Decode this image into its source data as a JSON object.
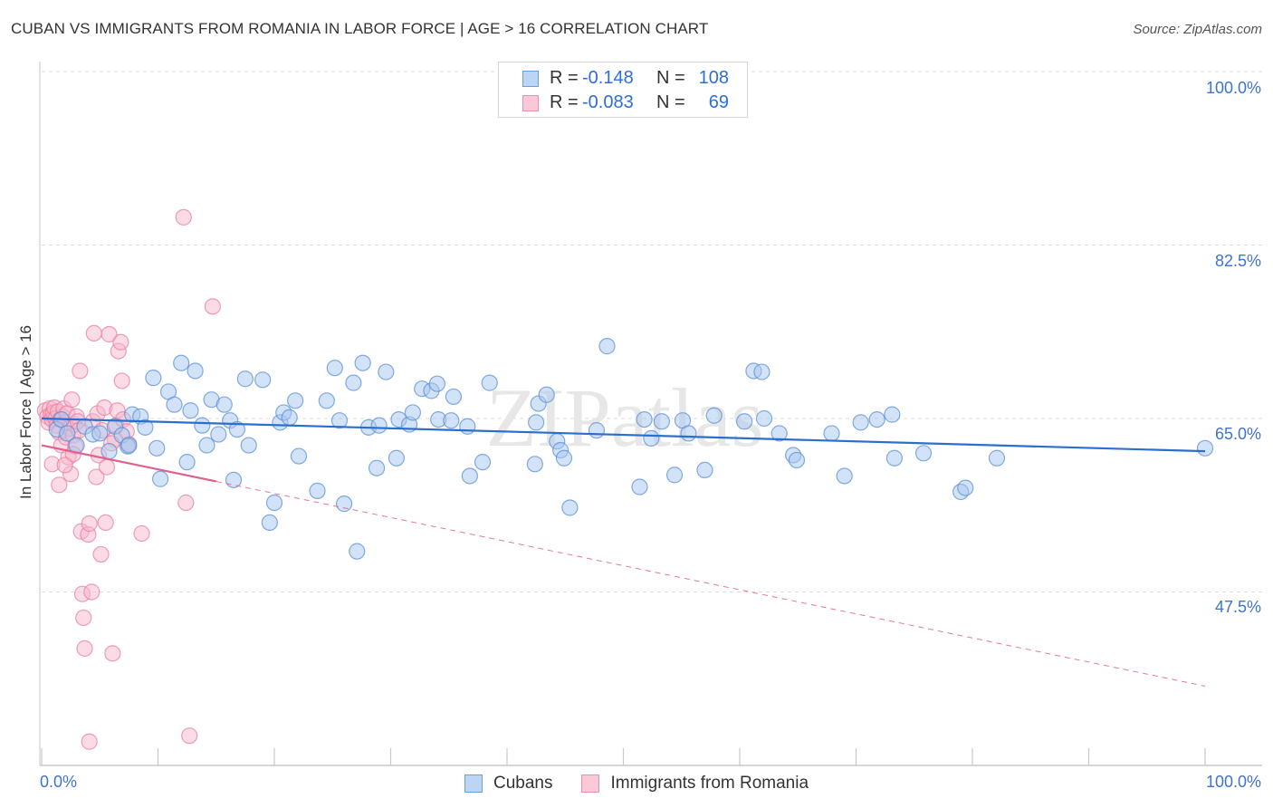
{
  "title": "CUBAN VS IMMIGRANTS FROM ROMANIA IN LABOR FORCE | AGE > 16 CORRELATION CHART",
  "source": "Source: ZipAtlas.com",
  "watermark": "ZIPatlas",
  "legend_top": [
    {
      "r_label": "R =",
      "r_value": "-0.148",
      "n_label": "N =",
      "n_value": "108"
    },
    {
      "r_label": "R =",
      "r_value": "-0.083",
      "n_label": "N =",
      "n_value": "69"
    }
  ],
  "axis": {
    "ylabel": "In Labor Force | Age > 16",
    "x_min_label": "0.0%",
    "x_max_label": "100.0%",
    "y_ticks": [
      "100.0%",
      "82.5%",
      "65.0%",
      "47.5%"
    ]
  },
  "colors": {
    "blue_fill": "#a8c8f0",
    "blue_stroke": "#5b8fd8",
    "blue_line": "#2a6fd0",
    "pink_fill": "#f7b7cb",
    "pink_stroke": "#ea7fa2",
    "pink_line": "#e0608a",
    "tick_text": "#3e74cf"
  },
  "chart_data": {
    "type": "scatter",
    "title": "CUBAN VS IMMIGRANTS FROM ROMANIA IN LABOR FORCE | AGE > 16 CORRELATION CHART",
    "xlabel": "",
    "ylabel": "In Labor Force | Age > 16",
    "xlim": [
      0,
      100
    ],
    "ylim": [
      30.5,
      102
    ],
    "y_tick_values": [
      100,
      82.5,
      65,
      47.5
    ],
    "legend_position": "top-center",
    "series": [
      {
        "name": "Cubans",
        "r": -0.148,
        "n": 108,
        "trend": {
          "x": [
            0,
            100
          ],
          "y": [
            65.0,
            61.7
          ],
          "style": "solid"
        },
        "points": [
          [
            1.3,
            63.9
          ],
          [
            1.7,
            64.9
          ],
          [
            2.2,
            63.5
          ],
          [
            3.0,
            62.3
          ],
          [
            3.7,
            64.2
          ],
          [
            4.4,
            63.4
          ],
          [
            5.0,
            63.5
          ],
          [
            5.8,
            61.7
          ],
          [
            6.3,
            64.2
          ],
          [
            6.9,
            63.3
          ],
          [
            7.4,
            62.2
          ],
          [
            7.8,
            65.4
          ],
          [
            8.5,
            65.2
          ],
          [
            8.9,
            64.1
          ],
          [
            9.6,
            69.1
          ],
          [
            9.9,
            62.0
          ],
          [
            10.2,
            58.9
          ],
          [
            10.9,
            67.7
          ],
          [
            11.4,
            66.4
          ],
          [
            12.0,
            70.6
          ],
          [
            12.5,
            60.6
          ],
          [
            12.8,
            65.8
          ],
          [
            13.2,
            69.8
          ],
          [
            13.8,
            64.3
          ],
          [
            14.2,
            62.3
          ],
          [
            14.6,
            66.9
          ],
          [
            15.2,
            63.4
          ],
          [
            15.7,
            66.4
          ],
          [
            16.2,
            64.8
          ],
          [
            16.5,
            58.8
          ],
          [
            16.8,
            63.9
          ],
          [
            17.8,
            62.3
          ],
          [
            17.5,
            69.0
          ],
          [
            19.0,
            68.9
          ],
          [
            20.0,
            56.5
          ],
          [
            19.6,
            54.5
          ],
          [
            20.5,
            64.6
          ],
          [
            20.8,
            65.6
          ],
          [
            21.3,
            65.1
          ],
          [
            21.8,
            66.8
          ],
          [
            22.1,
            61.2
          ],
          [
            23.7,
            57.7
          ],
          [
            24.5,
            66.8
          ],
          [
            25.2,
            70.1
          ],
          [
            25.6,
            64.8
          ],
          [
            26.0,
            56.4
          ],
          [
            26.8,
            68.6
          ],
          [
            27.1,
            51.6
          ],
          [
            27.6,
            70.6
          ],
          [
            28.1,
            64.1
          ],
          [
            28.8,
            60.0
          ],
          [
            29.0,
            64.3
          ],
          [
            29.6,
            69.7
          ],
          [
            30.7,
            64.9
          ],
          [
            31.6,
            64.4
          ],
          [
            31.9,
            65.6
          ],
          [
            32.7,
            68.0
          ],
          [
            33.5,
            67.8
          ],
          [
            34.0,
            68.5
          ],
          [
            34.1,
            64.9
          ],
          [
            35.2,
            64.8
          ],
          [
            35.4,
            67.2
          ],
          [
            36.6,
            64.2
          ],
          [
            36.8,
            59.2
          ],
          [
            37.9,
            60.6
          ],
          [
            38.5,
            68.6
          ],
          [
            42.5,
            64.6
          ],
          [
            42.4,
            60.4
          ],
          [
            42.7,
            66.5
          ],
          [
            43.4,
            67.4
          ],
          [
            44.3,
            62.7
          ],
          [
            44.6,
            61.8
          ],
          [
            44.9,
            61.0
          ],
          [
            45.4,
            56.0
          ],
          [
            47.7,
            63.8
          ],
          [
            48.6,
            72.3
          ],
          [
            51.4,
            58.1
          ],
          [
            51.8,
            64.9
          ],
          [
            52.4,
            63.0
          ],
          [
            53.3,
            64.7
          ],
          [
            54.4,
            59.3
          ],
          [
            55.1,
            64.8
          ],
          [
            55.6,
            63.5
          ],
          [
            57.0,
            59.8
          ],
          [
            57.8,
            65.3
          ],
          [
            60.4,
            64.7
          ],
          [
            61.2,
            69.8
          ],
          [
            61.9,
            69.7
          ],
          [
            62.1,
            65.0
          ],
          [
            63.4,
            63.5
          ],
          [
            64.6,
            61.3
          ],
          [
            64.9,
            60.8
          ],
          [
            67.9,
            63.5
          ],
          [
            69.0,
            59.2
          ],
          [
            70.4,
            64.6
          ],
          [
            71.8,
            64.9
          ],
          [
            73.1,
            65.4
          ],
          [
            73.3,
            61.0
          ],
          [
            75.8,
            61.5
          ],
          [
            79.0,
            57.6
          ],
          [
            79.4,
            58.0
          ],
          [
            82.1,
            61.0
          ],
          [
            100.0,
            62.0
          ],
          [
            7.5,
            62.3
          ],
          [
            30.5,
            61.0
          ]
        ]
      },
      {
        "name": "Immigrants from Romania",
        "r": -0.083,
        "n": 69,
        "trend": {
          "x": [
            0,
            100
          ],
          "y": [
            62.3,
            38.0
          ],
          "solid_until_x": 15,
          "style": "solid-then-dashed"
        },
        "points": [
          [
            0.3,
            65.8
          ],
          [
            0.5,
            65.2
          ],
          [
            0.6,
            64.6
          ],
          [
            0.7,
            66.0
          ],
          [
            0.8,
            65.4
          ],
          [
            0.9,
            64.9
          ],
          [
            1.0,
            65.6
          ],
          [
            1.1,
            66.1
          ],
          [
            1.2,
            65.0
          ],
          [
            1.3,
            64.3
          ],
          [
            1.4,
            65.7
          ],
          [
            1.5,
            63.6
          ],
          [
            1.6,
            64.9
          ],
          [
            1.7,
            62.3
          ],
          [
            1.8,
            65.2
          ],
          [
            1.9,
            66.0
          ],
          [
            2.0,
            64.6
          ],
          [
            2.1,
            63.1
          ],
          [
            2.2,
            65.5
          ],
          [
            2.3,
            61.1
          ],
          [
            2.4,
            64.0
          ],
          [
            2.5,
            59.4
          ],
          [
            2.6,
            66.9
          ],
          [
            2.7,
            63.3
          ],
          [
            2.8,
            64.4
          ],
          [
            2.9,
            62.2
          ],
          [
            3.0,
            65.2
          ],
          [
            3.1,
            64.7
          ],
          [
            3.2,
            63.8
          ],
          [
            3.3,
            69.8
          ],
          [
            3.4,
            53.6
          ],
          [
            3.5,
            47.3
          ],
          [
            3.6,
            44.9
          ],
          [
            3.7,
            41.8
          ],
          [
            4.0,
            53.3
          ],
          [
            4.1,
            54.4
          ],
          [
            4.3,
            47.5
          ],
          [
            4.4,
            64.7
          ],
          [
            4.5,
            73.6
          ],
          [
            4.7,
            59.1
          ],
          [
            4.8,
            65.5
          ],
          [
            4.9,
            61.3
          ],
          [
            5.1,
            51.3
          ],
          [
            5.2,
            63.8
          ],
          [
            5.4,
            66.1
          ],
          [
            5.5,
            54.5
          ],
          [
            5.6,
            60.1
          ],
          [
            5.8,
            73.5
          ],
          [
            6.1,
            41.3
          ],
          [
            6.3,
            62.9
          ],
          [
            6.4,
            64.3
          ],
          [
            6.5,
            65.8
          ],
          [
            6.6,
            71.8
          ],
          [
            6.8,
            72.7
          ],
          [
            6.9,
            68.8
          ],
          [
            7.0,
            64.9
          ],
          [
            7.3,
            63.7
          ],
          [
            7.5,
            62.4
          ],
          [
            8.6,
            53.4
          ],
          [
            12.2,
            85.3
          ],
          [
            12.4,
            56.5
          ],
          [
            14.7,
            76.3
          ],
          [
            1.5,
            58.3
          ],
          [
            2.7,
            61.4
          ],
          [
            0.9,
            60.4
          ],
          [
            2.0,
            60.3
          ],
          [
            4.1,
            32.4
          ],
          [
            12.7,
            33.0
          ],
          [
            6.0,
            62.5
          ]
        ]
      }
    ]
  }
}
